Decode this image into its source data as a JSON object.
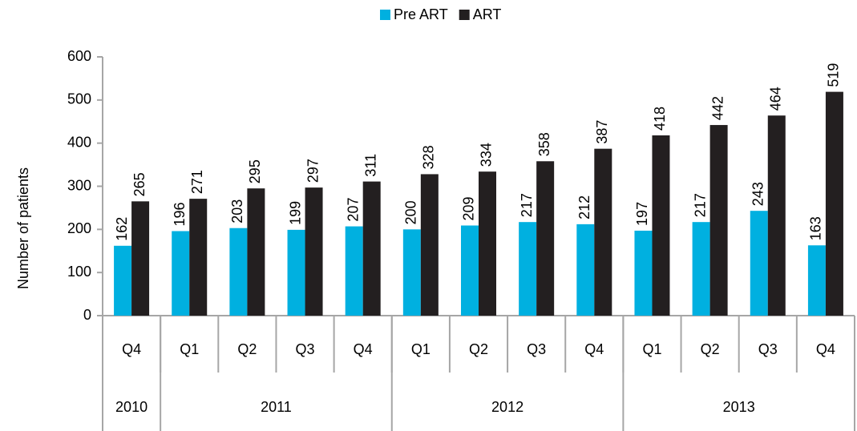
{
  "chart_data": {
    "type": "bar",
    "y_label": "Number of patients",
    "categories": [
      "Q4",
      "Q1",
      "Q2",
      "Q3",
      "Q4",
      "Q1",
      "Q2",
      "Q3",
      "Q4",
      "Q1",
      "Q2",
      "Q3",
      "Q4"
    ],
    "groups": [
      {
        "label": "2010",
        "size": 1
      },
      {
        "label": "2011",
        "size": 4
      },
      {
        "label": "2012",
        "size": 4
      },
      {
        "label": "2013",
        "size": 4
      }
    ],
    "series": [
      {
        "name": "Pre ART",
        "color": "#00b0e0",
        "values": [
          162,
          196,
          203,
          199,
          207,
          200,
          209,
          217,
          212,
          197,
          217,
          243,
          163
        ]
      },
      {
        "name": "ART",
        "color": "#231f20",
        "values": [
          265,
          271,
          295,
          297,
          311,
          328,
          334,
          358,
          387,
          418,
          442,
          464,
          519
        ]
      }
    ],
    "ylim": [
      0,
      600
    ],
    "yticks": [
      0,
      100,
      200,
      300,
      400,
      500,
      600
    ],
    "legend": "top"
  }
}
